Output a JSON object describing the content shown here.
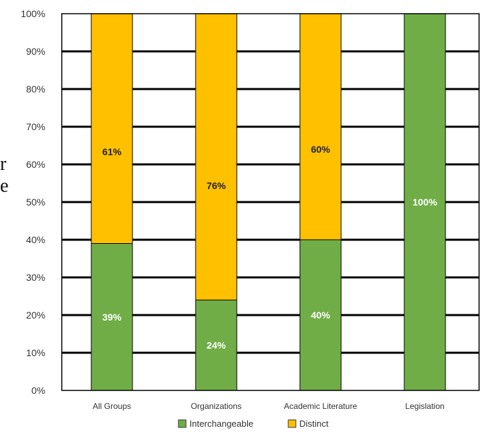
{
  "page": {
    "edge_fragments": [
      "r",
      "e"
    ]
  },
  "chart_data": {
    "type": "bar",
    "stacked": true,
    "categories": [
      "All Groups",
      "Organizations",
      "Academic Literature",
      "Legislation"
    ],
    "series": [
      {
        "name": "Interchangeable",
        "color": "#70ad47",
        "values": [
          39,
          24,
          40,
          100
        ],
        "labels": [
          "39%",
          "24%",
          "40%",
          "100%"
        ],
        "label_color": "#ffffff"
      },
      {
        "name": "Distinct",
        "color": "#ffc000",
        "values": [
          61,
          76,
          60,
          0
        ],
        "labels": [
          "61%",
          "76%",
          "60%",
          ""
        ],
        "label_color": "#222222"
      }
    ],
    "y_ticks": [
      "0%",
      "10%",
      "20%",
      "30%",
      "40%",
      "50%",
      "60%",
      "70%",
      "80%",
      "90%",
      "100%"
    ],
    "ylim": [
      0,
      100
    ],
    "grid": true,
    "legend": {
      "position": "bottom",
      "entries": [
        "Interchangeable",
        "Distinct"
      ]
    },
    "title": "",
    "xlabel": "",
    "ylabel": ""
  }
}
